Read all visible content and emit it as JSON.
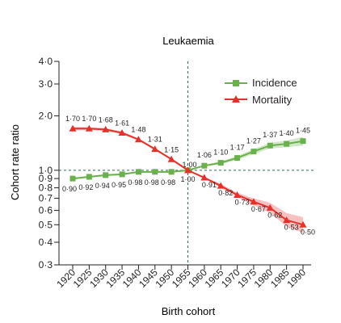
{
  "chart_data": {
    "type": "line",
    "title": "Leukaemia",
    "xlabel": "Birth cohort",
    "ylabel": "Cohort rate ratio",
    "y_scale": "log",
    "ylim": [
      0.3,
      4.0
    ],
    "xlim": [
      1920,
      1990
    ],
    "x": [
      1920,
      1925,
      1930,
      1935,
      1940,
      1945,
      1950,
      1955,
      1960,
      1965,
      1970,
      1975,
      1980,
      1985,
      1990
    ],
    "x_tick_labels": [
      "1920",
      "1925",
      "1930",
      "1935",
      "1940",
      "1945",
      "1950",
      "1955",
      "1960",
      "1965",
      "1970",
      "1975",
      "1980",
      "1985",
      "1990"
    ],
    "y_ticks": [
      0.3,
      0.4,
      0.5,
      0.6,
      0.7,
      0.8,
      0.9,
      1.0,
      2.0,
      3.0,
      4.0
    ],
    "y_tick_labels": [
      "0·3",
      "0·4",
      "0·5",
      "0·6",
      "0·7",
      "0·8",
      "0·9",
      "1·0",
      "2·0",
      "3·0",
      "4·0"
    ],
    "reference_lines": {
      "x": 1955,
      "y": 1.0,
      "style": "dashed"
    },
    "legend_position": "top-right",
    "grid": false,
    "series": [
      {
        "name": "Incidence",
        "color": "#6ab04c",
        "marker": "square",
        "values": [
          0.9,
          0.92,
          0.94,
          0.95,
          0.98,
          0.98,
          0.98,
          1.0,
          1.06,
          1.1,
          1.17,
          1.27,
          1.37,
          1.4,
          1.45
        ],
        "labels": [
          "0·90",
          "0·92",
          "0·94",
          "0·95",
          "0·98",
          "0·98",
          "0·98",
          "1·00",
          "1·06",
          "1·10",
          "1·17",
          "1·27",
          "1·37",
          "1·40",
          "1·45"
        ],
        "ci_lower": [
          0.89,
          0.91,
          0.93,
          0.94,
          0.97,
          0.97,
          0.97,
          1.0,
          1.05,
          1.08,
          1.14,
          1.23,
          1.32,
          1.34,
          1.37
        ],
        "ci_upper": [
          0.91,
          0.93,
          0.95,
          0.96,
          0.99,
          0.99,
          0.99,
          1.0,
          1.07,
          1.12,
          1.2,
          1.31,
          1.42,
          1.46,
          1.53
        ]
      },
      {
        "name": "Mortality",
        "color": "#e8302a",
        "marker": "triangle",
        "values": [
          1.7,
          1.7,
          1.68,
          1.61,
          1.48,
          1.31,
          1.15,
          1.0,
          0.91,
          0.82,
          0.73,
          0.67,
          0.62,
          0.53,
          0.5
        ],
        "labels": [
          "1·70",
          "1·70",
          "1·68",
          "1·61",
          "1·48",
          "1·31",
          "1·15",
          "1·00",
          "0·91",
          "0·82",
          "0·73",
          "0·67",
          "0·62",
          "0·53",
          "0·50"
        ],
        "ci_lower": [
          1.66,
          1.67,
          1.65,
          1.58,
          1.46,
          1.29,
          1.14,
          1.0,
          0.9,
          0.8,
          0.71,
          0.64,
          0.58,
          0.49,
          0.45
        ],
        "ci_upper": [
          1.74,
          1.73,
          1.71,
          1.64,
          1.5,
          1.33,
          1.16,
          1.0,
          0.92,
          0.84,
          0.75,
          0.7,
          0.66,
          0.58,
          0.55
        ]
      }
    ]
  }
}
